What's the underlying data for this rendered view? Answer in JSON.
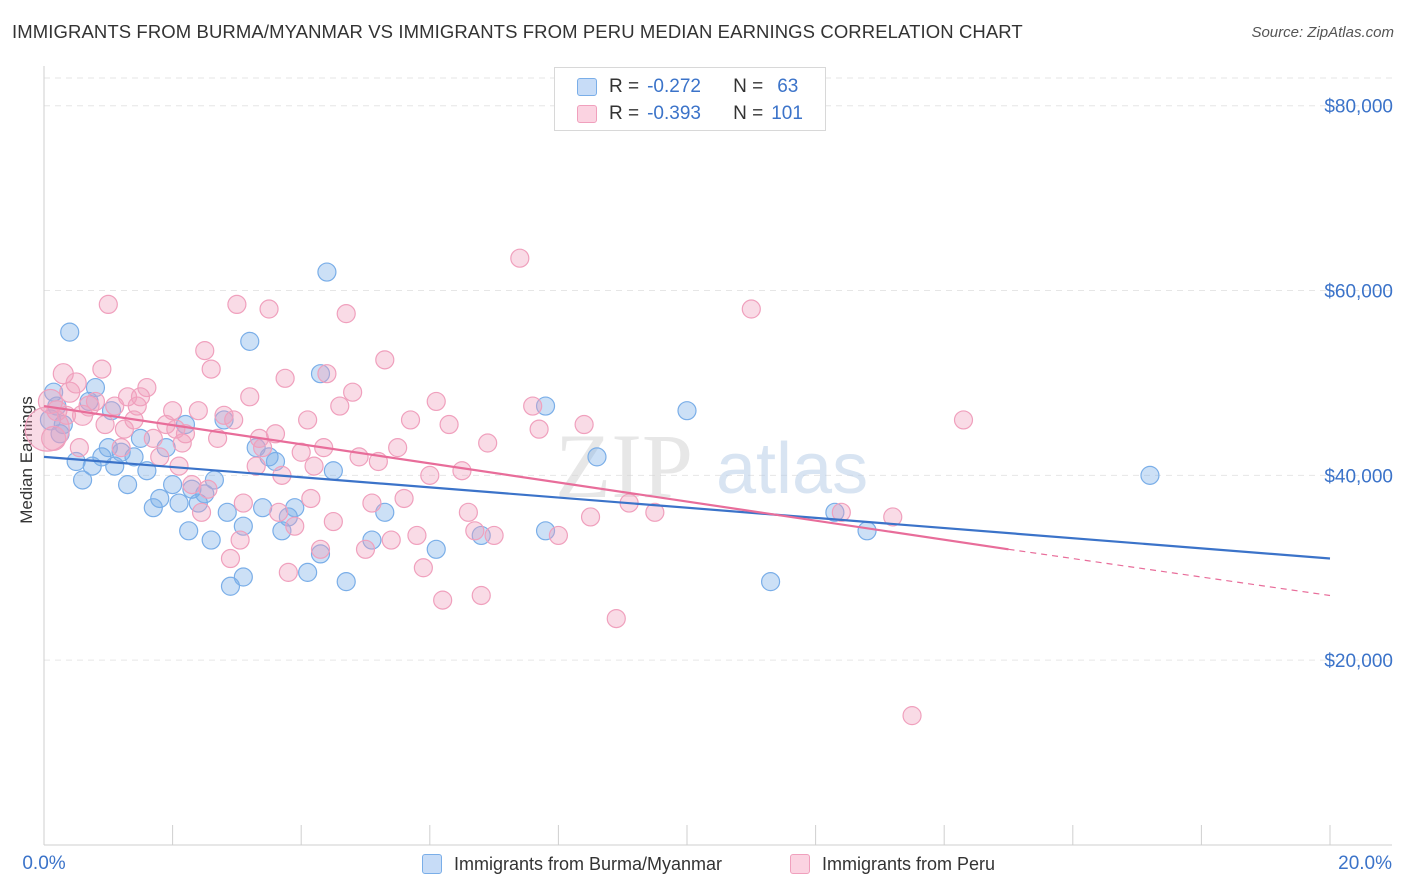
{
  "title": "IMMIGRANTS FROM BURMA/MYANMAR VS IMMIGRANTS FROM PERU MEDIAN EARNINGS CORRELATION CHART",
  "source": "Source: ZipAtlas.com",
  "watermark": {
    "zip": "ZIP",
    "atlas": "atlas"
  },
  "legend": {
    "r_label": "R =",
    "n_label": "N =",
    "rows": [
      {
        "r": "-0.272",
        "n": "63",
        "color": "#7aaee8"
      },
      {
        "r": "-0.393",
        "n": "101",
        "color": "#f0a0bd"
      }
    ]
  },
  "bottom_legend": [
    "Immigrants from Burma/Myanmar",
    "Immigrants from Peru"
  ],
  "chart_data": {
    "type": "scatter",
    "xlabel": "",
    "ylabel": "Median Earnings",
    "xlim": [
      0,
      20
    ],
    "ylim": [
      0,
      83000
    ],
    "x_tick_labels": [
      "0.0%",
      "20.0%"
    ],
    "y_ticks": [
      20000,
      40000,
      60000,
      80000
    ],
    "y_tick_labels": [
      "$20,000",
      "$40,000",
      "$60,000",
      "$80,000"
    ],
    "series": [
      {
        "name": "Immigrants from Burma/Myanmar",
        "color": "#7aaee8",
        "line_color": "#3b73c9",
        "trend": {
          "x0": 0,
          "y0": 42000,
          "x1": 20,
          "y1": 31000
        },
        "points": [
          [
            0.1,
            46000,
            10
          ],
          [
            0.2,
            47500,
            9
          ],
          [
            0.3,
            45500,
            9
          ],
          [
            0.4,
            55500,
            9
          ],
          [
            0.5,
            41500,
            9
          ],
          [
            0.6,
            39500,
            9
          ],
          [
            0.7,
            48000,
            9
          ],
          [
            0.8,
            49500,
            9
          ],
          [
            0.9,
            42000,
            9
          ],
          [
            1.0,
            43000,
            9
          ],
          [
            1.1,
            41000,
            9
          ],
          [
            1.2,
            42500,
            9
          ],
          [
            1.3,
            39000,
            9
          ],
          [
            1.4,
            42000,
            9
          ],
          [
            1.5,
            44000,
            9
          ],
          [
            1.6,
            40500,
            9
          ],
          [
            1.7,
            36500,
            9
          ],
          [
            1.8,
            37500,
            9
          ],
          [
            1.9,
            43000,
            9
          ],
          [
            2.0,
            39000,
            9
          ],
          [
            2.1,
            37000,
            9
          ],
          [
            2.2,
            45500,
            9
          ],
          [
            2.25,
            34000,
            9
          ],
          [
            2.3,
            38500,
            9
          ],
          [
            2.4,
            37000,
            9
          ],
          [
            2.5,
            38000,
            9
          ],
          [
            2.6,
            33000,
            9
          ],
          [
            2.65,
            39500,
            9
          ],
          [
            2.8,
            46000,
            9
          ],
          [
            2.85,
            36000,
            9
          ],
          [
            2.9,
            28000,
            9
          ],
          [
            3.1,
            29000,
            9
          ],
          [
            3.1,
            34500,
            9
          ],
          [
            3.2,
            54500,
            9
          ],
          [
            3.3,
            43000,
            9
          ],
          [
            3.4,
            36500,
            9
          ],
          [
            3.5,
            42000,
            9
          ],
          [
            3.6,
            41500,
            9
          ],
          [
            3.7,
            34000,
            9
          ],
          [
            3.8,
            35500,
            9
          ],
          [
            3.9,
            36500,
            9
          ],
          [
            4.1,
            29500,
            9
          ],
          [
            4.3,
            31500,
            9
          ],
          [
            4.3,
            51000,
            9
          ],
          [
            4.4,
            62000,
            9
          ],
          [
            4.5,
            40500,
            9
          ],
          [
            4.7,
            28500,
            9
          ],
          [
            5.1,
            33000,
            9
          ],
          [
            5.3,
            36000,
            9
          ],
          [
            6.1,
            32000,
            9
          ],
          [
            6.8,
            33500,
            9
          ],
          [
            7.8,
            34000,
            9
          ],
          [
            8.6,
            42000,
            9
          ],
          [
            7.8,
            47500,
            9
          ],
          [
            10.0,
            47000,
            9
          ],
          [
            11.3,
            28500,
            9
          ],
          [
            12.3,
            36000,
            9
          ],
          [
            12.8,
            34000,
            9
          ],
          [
            17.2,
            40000,
            9
          ],
          [
            0.15,
            49000,
            9
          ],
          [
            0.25,
            44500,
            9
          ],
          [
            1.05,
            47000,
            9
          ],
          [
            0.75,
            41000,
            9
          ]
        ]
      },
      {
        "name": "Immigrants from Peru",
        "color": "#f0a0bd",
        "line_color": "#e86d9a",
        "trend": {
          "x0": 0,
          "y0": 47500,
          "x1": 15,
          "y1": 32000
        },
        "trend_dashed": {
          "x0": 15,
          "y0": 32000,
          "x1": 20,
          "y1": 27000
        },
        "points": [
          [
            0.05,
            45000,
            22
          ],
          [
            0.1,
            48000,
            12
          ],
          [
            0.2,
            47000,
            10
          ],
          [
            0.3,
            51000,
            10
          ],
          [
            0.4,
            49000,
            10
          ],
          [
            0.5,
            50000,
            10
          ],
          [
            0.6,
            46500,
            10
          ],
          [
            0.7,
            47500,
            10
          ],
          [
            0.8,
            48000,
            9
          ],
          [
            0.9,
            51500,
            9
          ],
          [
            0.95,
            45500,
            9
          ],
          [
            1.0,
            58500,
            9
          ],
          [
            1.1,
            47500,
            9
          ],
          [
            1.2,
            43000,
            9
          ],
          [
            1.3,
            48500,
            9
          ],
          [
            1.4,
            46000,
            9
          ],
          [
            1.5,
            48500,
            9
          ],
          [
            1.6,
            49500,
            9
          ],
          [
            1.7,
            44000,
            9
          ],
          [
            1.8,
            42000,
            9
          ],
          [
            1.9,
            45500,
            9
          ],
          [
            2.0,
            47000,
            9
          ],
          [
            2.05,
            45000,
            9
          ],
          [
            2.1,
            41000,
            9
          ],
          [
            2.2,
            44500,
            9
          ],
          [
            2.3,
            39000,
            9
          ],
          [
            2.4,
            47000,
            9
          ],
          [
            2.45,
            36000,
            9
          ],
          [
            2.5,
            53500,
            9
          ],
          [
            2.6,
            51500,
            9
          ],
          [
            2.7,
            44000,
            9
          ],
          [
            2.8,
            46500,
            9
          ],
          [
            2.9,
            31000,
            9
          ],
          [
            2.95,
            46000,
            9
          ],
          [
            3.0,
            58500,
            9
          ],
          [
            3.1,
            37000,
            9
          ],
          [
            3.2,
            48500,
            9
          ],
          [
            3.3,
            41000,
            9
          ],
          [
            3.35,
            44000,
            9
          ],
          [
            3.4,
            43000,
            9
          ],
          [
            3.5,
            58000,
            9
          ],
          [
            3.6,
            44500,
            9
          ],
          [
            3.7,
            40000,
            9
          ],
          [
            3.75,
            50500,
            9
          ],
          [
            3.8,
            29500,
            9
          ],
          [
            3.9,
            34500,
            9
          ],
          [
            4.0,
            42500,
            9
          ],
          [
            4.1,
            46000,
            9
          ],
          [
            4.2,
            41000,
            9
          ],
          [
            4.3,
            32000,
            9
          ],
          [
            4.35,
            43000,
            9
          ],
          [
            4.4,
            51000,
            9
          ],
          [
            4.5,
            35000,
            9
          ],
          [
            4.6,
            47500,
            9
          ],
          [
            4.7,
            57500,
            9
          ],
          [
            4.8,
            49000,
            9
          ],
          [
            4.9,
            42000,
            9
          ],
          [
            5.0,
            32000,
            9
          ],
          [
            5.1,
            37000,
            9
          ],
          [
            5.2,
            41500,
            9
          ],
          [
            5.3,
            52500,
            9
          ],
          [
            5.4,
            33000,
            9
          ],
          [
            5.5,
            43000,
            9
          ],
          [
            5.6,
            37500,
            9
          ],
          [
            5.7,
            46000,
            9
          ],
          [
            5.8,
            33500,
            9
          ],
          [
            5.9,
            30000,
            9
          ],
          [
            6.0,
            40000,
            9
          ],
          [
            6.1,
            48000,
            9
          ],
          [
            6.2,
            26500,
            9
          ],
          [
            6.3,
            45500,
            9
          ],
          [
            6.5,
            40500,
            9
          ],
          [
            6.6,
            36000,
            9
          ],
          [
            6.7,
            34000,
            9
          ],
          [
            6.8,
            27000,
            9
          ],
          [
            6.9,
            43500,
            9
          ],
          [
            7.0,
            33500,
            9
          ],
          [
            7.4,
            63500,
            9
          ],
          [
            7.6,
            47500,
            9
          ],
          [
            7.7,
            45000,
            9
          ],
          [
            8.0,
            33500,
            9
          ],
          [
            8.4,
            45500,
            9
          ],
          [
            8.5,
            35500,
            9
          ],
          [
            8.9,
            24500,
            9
          ],
          [
            9.1,
            37000,
            9
          ],
          [
            9.5,
            36000,
            9
          ],
          [
            11.0,
            58000,
            9
          ],
          [
            12.4,
            36000,
            9
          ],
          [
            13.2,
            35500,
            9
          ],
          [
            13.5,
            14000,
            9
          ],
          [
            14.3,
            46000,
            9
          ],
          [
            0.15,
            44000,
            12
          ],
          [
            0.35,
            46500,
            9
          ],
          [
            0.55,
            43000,
            9
          ],
          [
            1.25,
            45000,
            9
          ],
          [
            1.45,
            47500,
            9
          ],
          [
            2.15,
            43500,
            9
          ],
          [
            2.55,
            38500,
            9
          ],
          [
            3.05,
            33000,
            9
          ],
          [
            3.65,
            36000,
            9
          ],
          [
            4.15,
            37500,
            9
          ]
        ]
      }
    ]
  }
}
